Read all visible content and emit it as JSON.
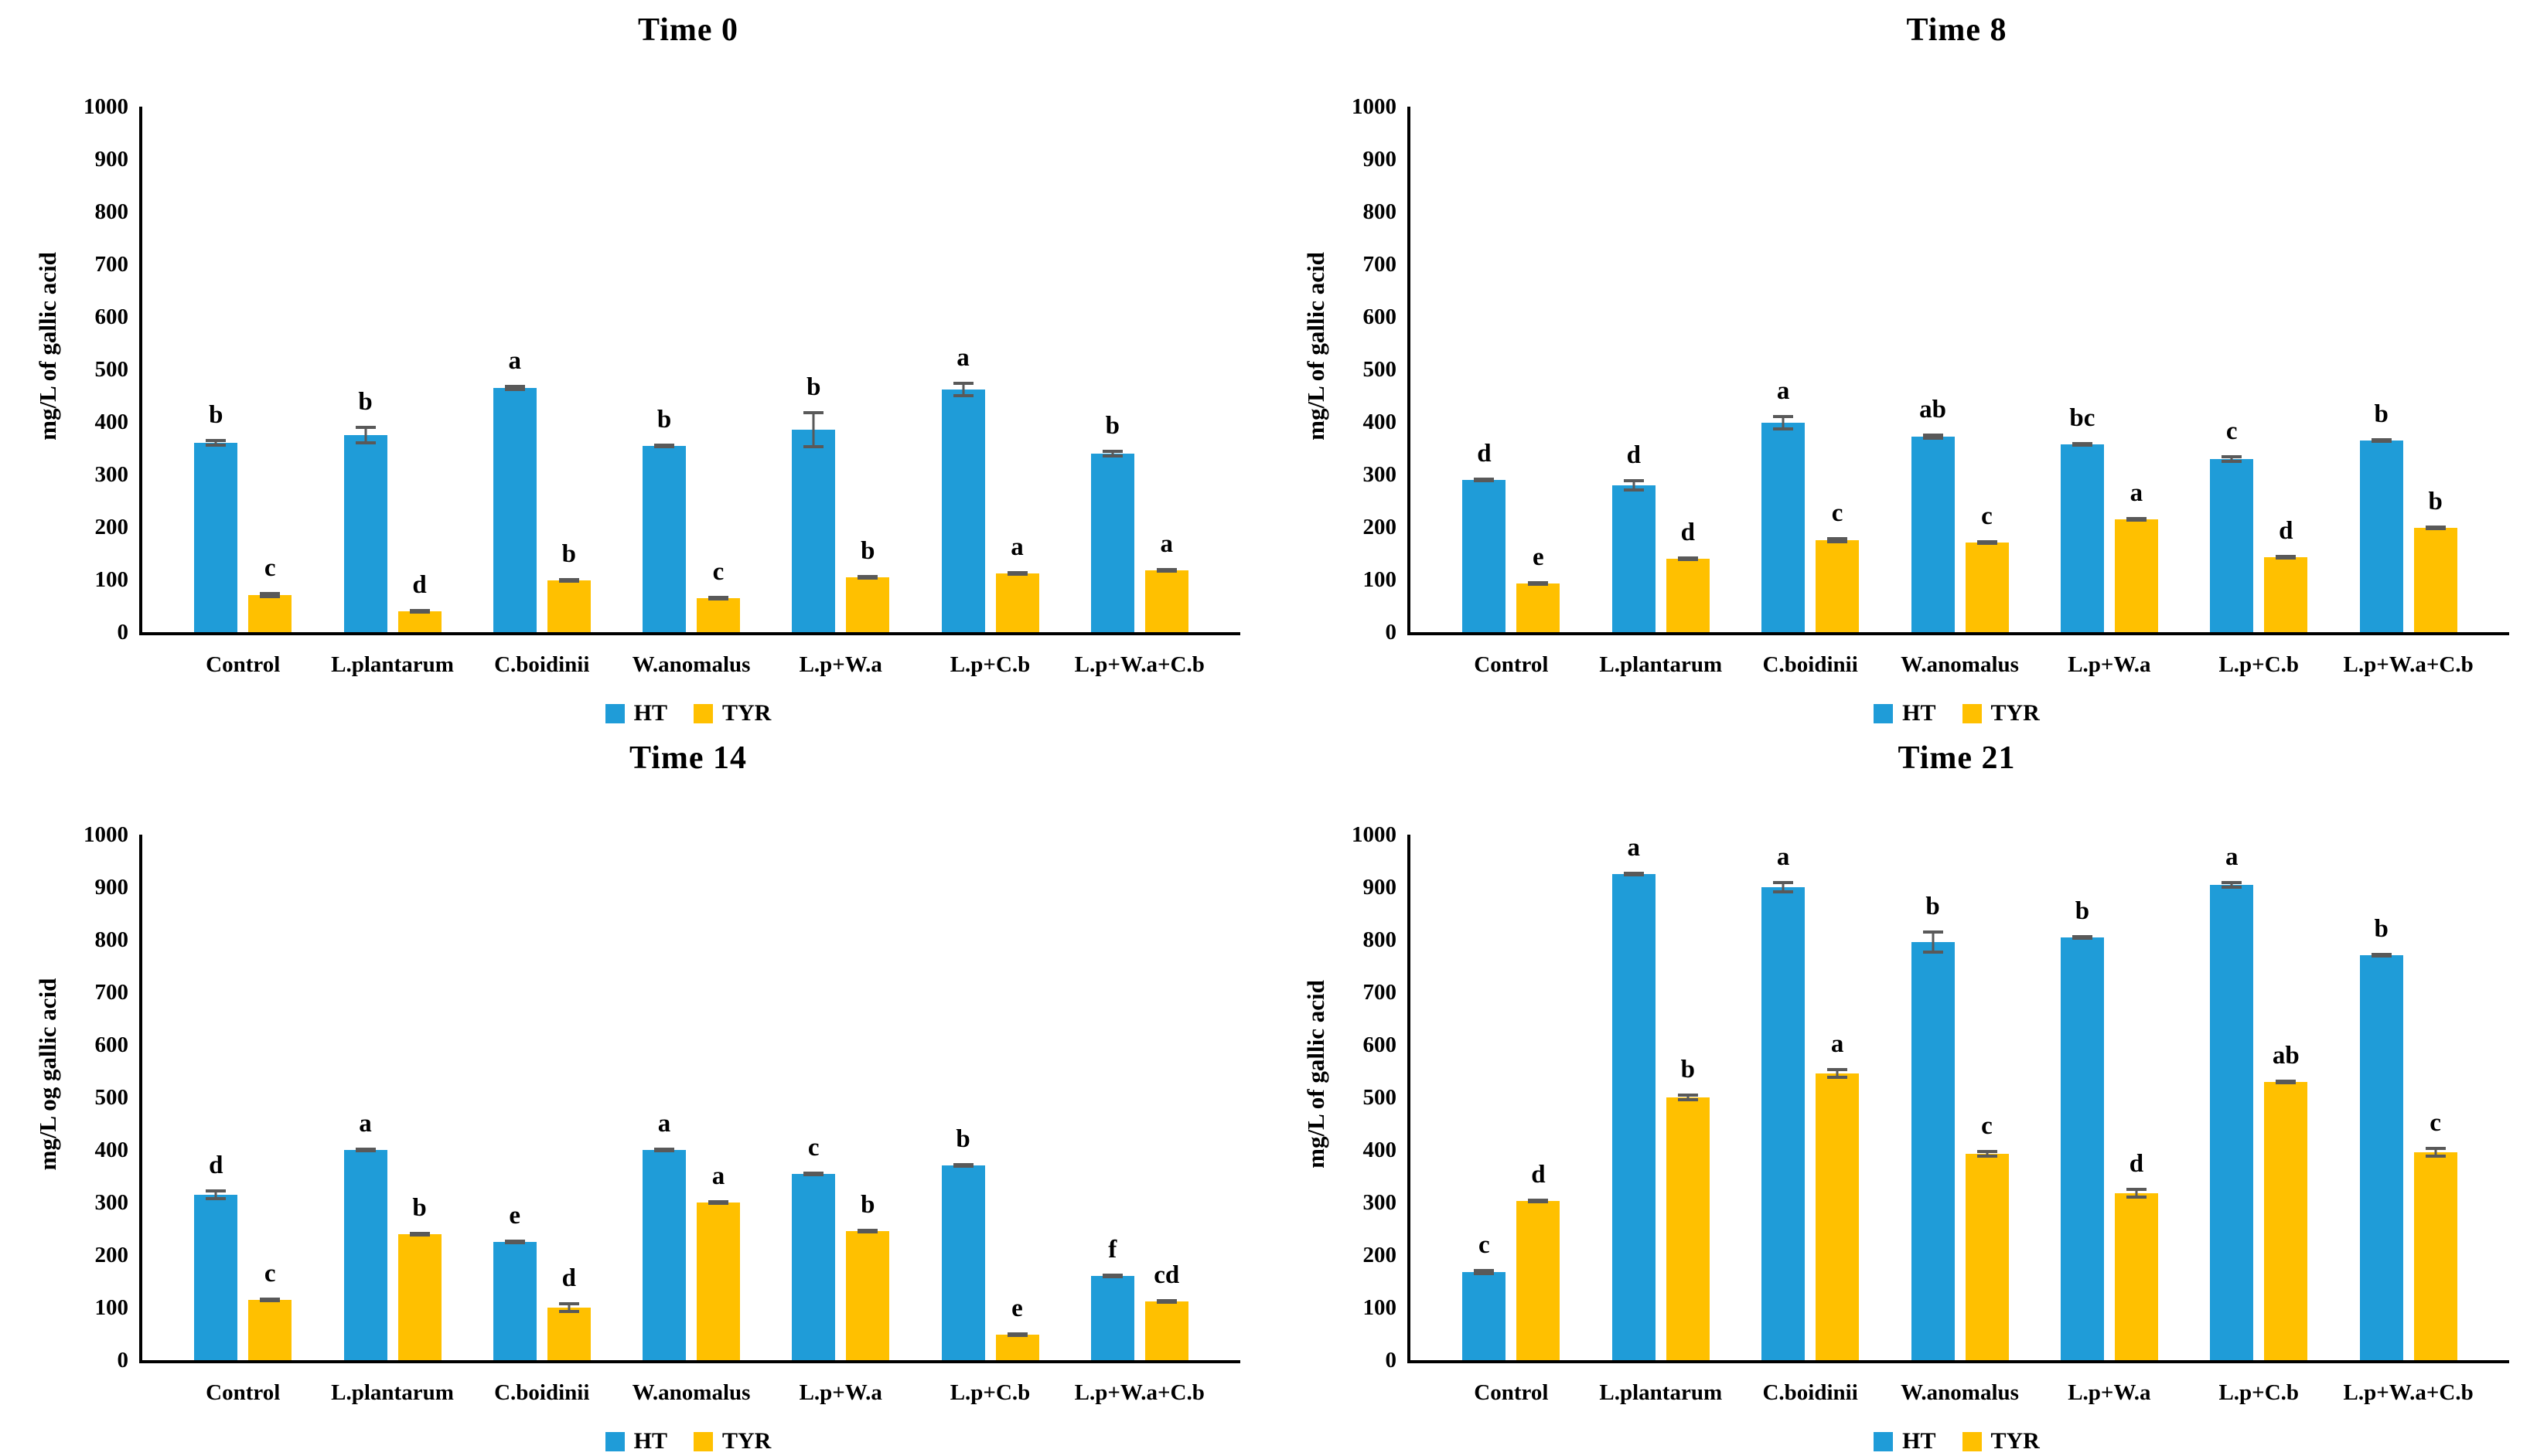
{
  "page": {
    "background": "#ffffff"
  },
  "colors": {
    "ht": "#1F9CD8",
    "tyr": "#FFC000",
    "error_bar": "#595959",
    "axis": "#000000"
  },
  "legend": {
    "items": [
      {
        "label": "HT",
        "series": "ht"
      },
      {
        "label": "TYR",
        "series": "tyr"
      }
    ]
  },
  "chart_data": [
    {
      "type": "bar",
      "title": "Time 0",
      "ylabel": "mg/L of gallic acid",
      "xlabel": "",
      "ylim": [
        0,
        1000
      ],
      "ytick_step": 100,
      "grid": false,
      "legend_position": "bottom",
      "categories": [
        "Control",
        "L.plantarum",
        "C.boidinii",
        "W.anomalus",
        "L.p+W.a",
        "L.p+C.b",
        "L.p+W.a+C.b"
      ],
      "series": [
        {
          "name": "HT",
          "color_key": "ht",
          "values": [
            360,
            375,
            465,
            355,
            385,
            462,
            340
          ],
          "errors": [
            8,
            18,
            6,
            5,
            35,
            15,
            8
          ],
          "letters": [
            "b",
            "b",
            "a",
            "b",
            "b",
            "a",
            "b"
          ]
        },
        {
          "name": "TYR",
          "color_key": "tyr",
          "values": [
            70,
            40,
            98,
            65,
            105,
            112,
            118
          ],
          "errors": [
            6,
            4,
            5,
            4,
            5,
            4,
            5
          ],
          "letters": [
            "c",
            "d",
            "b",
            "c",
            "b",
            "a",
            "a"
          ]
        }
      ]
    },
    {
      "type": "bar",
      "title": "Time 8",
      "ylabel": "mg/L of gallic acid",
      "xlabel": "",
      "ylim": [
        0,
        1000
      ],
      "ytick_step": 100,
      "grid": false,
      "legend_position": "bottom",
      "categories": [
        "Control",
        "L.plantarum",
        "C.boidinii",
        "W.anomalus",
        "L.p+W.a",
        "L.p+C.b",
        "L.p+W.a+C.b"
      ],
      "series": [
        {
          "name": "HT",
          "color_key": "ht",
          "values": [
            290,
            280,
            398,
            372,
            357,
            330,
            365
          ],
          "errors": [
            5,
            12,
            15,
            6,
            4,
            8,
            4
          ],
          "letters": [
            "d",
            "d",
            "a",
            "ab",
            "bc",
            "c",
            "b"
          ]
        },
        {
          "name": "TYR",
          "color_key": "tyr",
          "values": [
            92,
            140,
            175,
            170,
            215,
            143,
            198
          ],
          "errors": [
            5,
            4,
            6,
            5,
            5,
            5,
            4
          ],
          "letters": [
            "e",
            "d",
            "c",
            "c",
            "a",
            "d",
            "b"
          ]
        }
      ]
    },
    {
      "type": "bar",
      "title": "Time 14",
      "ylabel": "mg/L og gallic acid",
      "xlabel": "",
      "ylim": [
        0,
        1000
      ],
      "ytick_step": 100,
      "grid": false,
      "legend_position": "bottom",
      "categories": [
        "Control",
        "L.plantarum",
        "C.boidinii",
        "W.anomalus",
        "L.p+W.a",
        "L.p+C.b",
        "L.p+W.a+C.b"
      ],
      "series": [
        {
          "name": "HT",
          "color_key": "ht",
          "values": [
            315,
            400,
            225,
            400,
            355,
            370,
            160
          ],
          "errors": [
            10,
            5,
            5,
            5,
            5,
            5,
            5
          ],
          "letters": [
            "d",
            "a",
            "e",
            "a",
            "c",
            "b",
            "f"
          ]
        },
        {
          "name": "TYR",
          "color_key": "tyr",
          "values": [
            115,
            240,
            100,
            300,
            245,
            48,
            112
          ],
          "errors": [
            5,
            5,
            10,
            5,
            5,
            4,
            5
          ],
          "letters": [
            "c",
            "b",
            "d",
            "a",
            "b",
            "e",
            "cd"
          ]
        }
      ]
    },
    {
      "type": "bar",
      "title": "Time 21",
      "ylabel": "mg/L of gallic acid",
      "xlabel": "",
      "ylim": [
        0,
        1000
      ],
      "ytick_step": 100,
      "grid": false,
      "legend_position": "bottom",
      "categories": [
        "Control",
        "L.plantarum",
        "C.boidinii",
        "W.anomalus",
        "L.p+W.a",
        "L.p+C.b",
        "L.p+W.a+C.b"
      ],
      "series": [
        {
          "name": "HT",
          "color_key": "ht",
          "values": [
            168,
            925,
            900,
            795,
            805,
            905,
            770
          ],
          "errors": [
            6,
            5,
            12,
            22,
            5,
            8,
            5
          ],
          "letters": [
            "c",
            "a",
            "a",
            "b",
            "b",
            "a",
            "b"
          ]
        },
        {
          "name": "TYR",
          "color_key": "tyr",
          "values": [
            303,
            500,
            545,
            393,
            318,
            530,
            395
          ],
          "errors": [
            5,
            8,
            10,
            8,
            10,
            5,
            10
          ],
          "letters": [
            "d",
            "b",
            "a",
            "c",
            "d",
            "ab",
            "c"
          ]
        }
      ]
    }
  ]
}
